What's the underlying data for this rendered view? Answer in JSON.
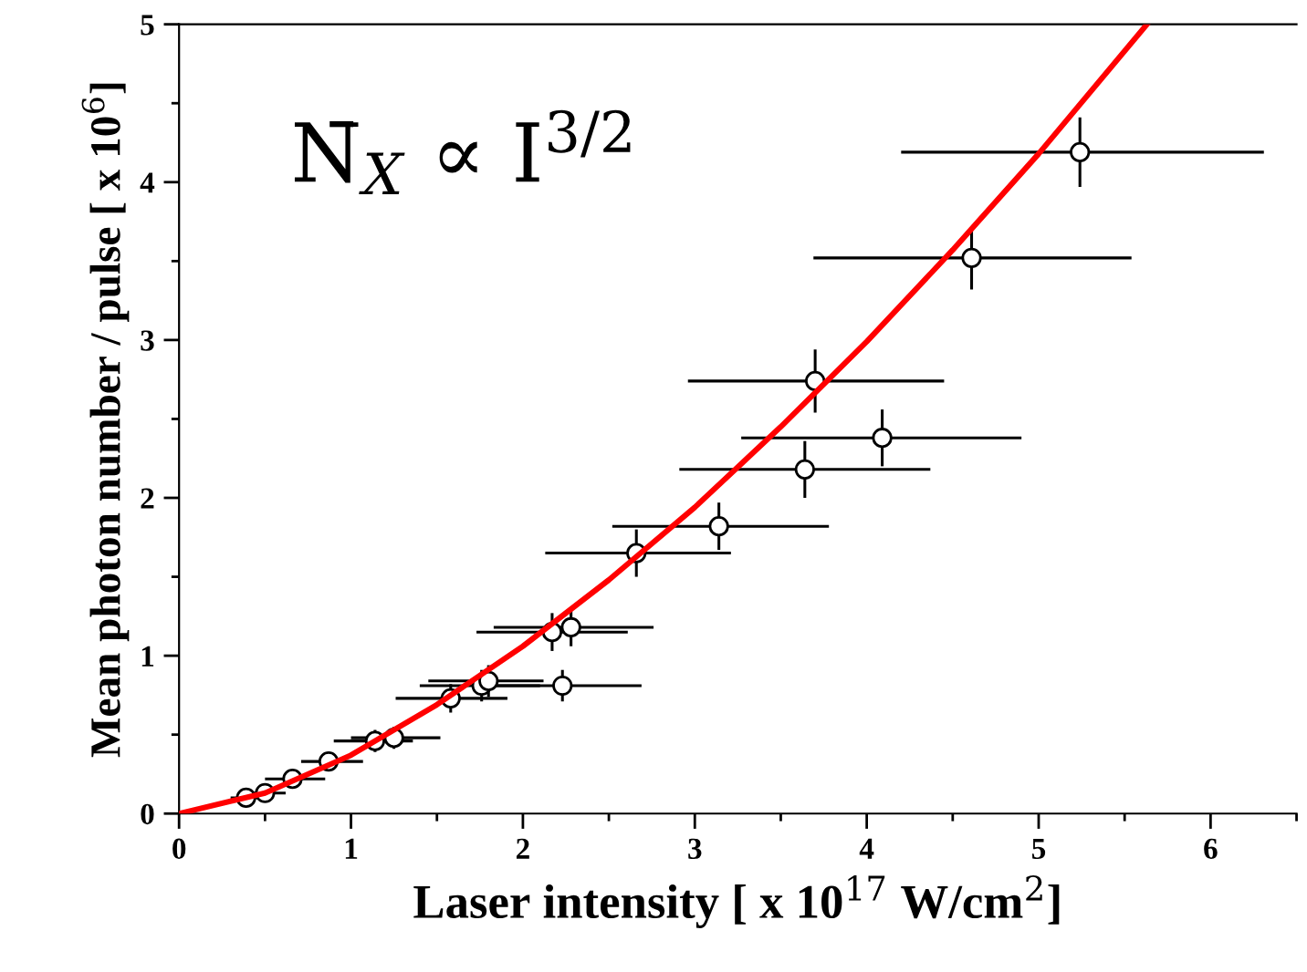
{
  "chart_data": {
    "type": "scatter",
    "xlabel": "Laser intensity [ x 10$^{17}$ W/cm$^{2}$]",
    "ylabel": "Mean photon number / pulse [ x 10$^{6}$]",
    "annotations": [
      "N̄$_{X}$ ∝ I$^{3/2}$"
    ],
    "xlim": [
      0,
      6.5
    ],
    "ylim": [
      0,
      5
    ],
    "xticks": [
      0,
      {
        "value": 0.5,
        "label": null
      },
      1,
      {
        "value": 1.5,
        "label": null
      },
      2,
      {
        "value": 2.5,
        "label": null
      },
      3,
      {
        "value": 3.5,
        "label": null
      },
      4,
      {
        "value": 4.5,
        "label": null
      },
      5,
      {
        "value": 5.5,
        "label": null
      },
      6,
      {
        "value": 6.5,
        "label": null
      }
    ],
    "yticks": [
      0,
      {
        "value": 0.5,
        "label": null
      },
      1,
      {
        "value": 1.5,
        "label": null
      },
      2,
      {
        "value": 2.5,
        "label": null
      },
      3,
      {
        "value": 3.5,
        "label": null
      },
      4,
      {
        "value": 4.5,
        "label": null
      },
      5
    ],
    "grid": false,
    "legend": false,
    "series": [
      {
        "marker": "circle",
        "color": "#000000",
        "x": [
          0.39,
          0.5,
          0.66,
          0.87,
          1.14,
          1.25,
          1.58,
          1.76,
          1.8,
          2.17,
          2.23,
          2.28,
          2.66,
          3.14,
          3.64,
          3.7,
          4.09,
          4.61,
          5.24
        ],
        "values": [
          0.1,
          0.13,
          0.22,
          0.33,
          0.46,
          0.48,
          0.73,
          0.81,
          0.84,
          1.15,
          0.81,
          1.18,
          1.65,
          1.82,
          2.18,
          2.74,
          2.38,
          3.52,
          4.19
        ],
        "errors": [
          0.03,
          0.04,
          0.05,
          0.06,
          0.07,
          0.07,
          0.09,
          0.1,
          0.1,
          0.12,
          0.1,
          0.12,
          0.15,
          0.15,
          0.18,
          0.2,
          0.18,
          0.2,
          0.22
        ],
        "xerrors": [
          [
            0.3,
            0.48
          ],
          [
            0.4,
            0.62
          ],
          [
            0.5,
            0.85
          ],
          [
            0.71,
            1.07
          ],
          [
            0.9,
            1.36
          ],
          [
            1.0,
            1.52
          ],
          [
            1.26,
            1.91
          ],
          [
            1.4,
            2.1
          ],
          [
            1.45,
            2.12
          ],
          [
            1.73,
            2.61
          ],
          [
            1.78,
            2.69
          ],
          [
            1.83,
            2.76
          ],
          [
            2.13,
            3.21
          ],
          [
            2.52,
            3.78
          ],
          [
            2.91,
            4.37
          ],
          [
            2.96,
            4.45
          ],
          [
            3.27,
            4.9
          ],
          [
            3.69,
            5.54
          ],
          [
            4.2,
            6.31
          ]
        ]
      },
      {
        "type": "line",
        "marker": "none",
        "line_style": "solid",
        "color": "#ff0000",
        "x": [
          0,
          0.5,
          1,
          1.5,
          2,
          2.5,
          3,
          3.5,
          4,
          4.5,
          5,
          5.63
        ],
        "values": [
          0,
          0.13,
          0.37,
          0.69,
          1.06,
          1.48,
          1.94,
          2.45,
          2.99,
          3.57,
          4.18,
          5.0
        ]
      }
    ]
  }
}
